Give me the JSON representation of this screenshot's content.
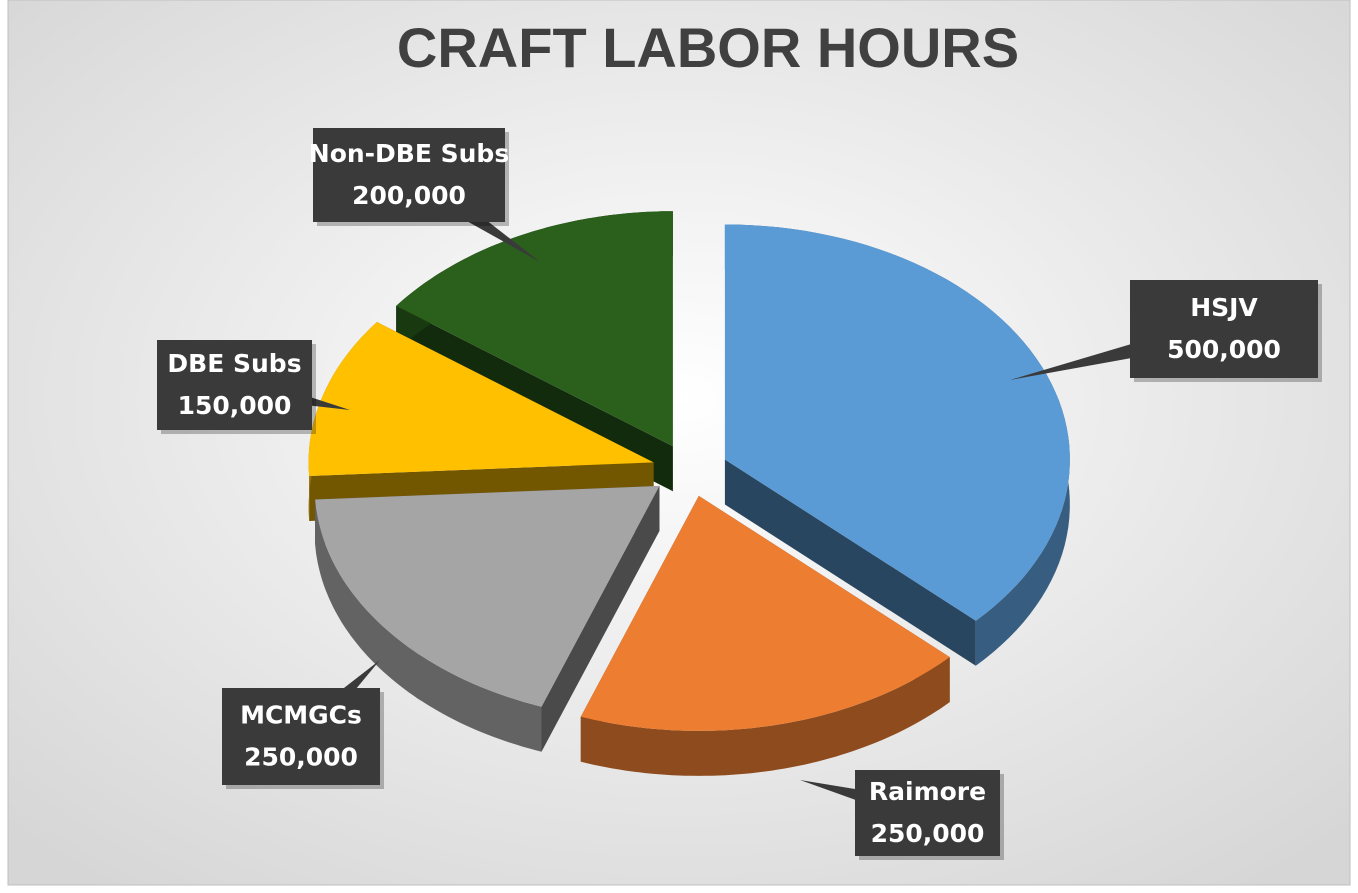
{
  "chart_data": {
    "type": "pie",
    "title": "CRAFT LABOR HOURS",
    "categories": [
      "HSJV",
      "Raimore",
      "MCMGCs",
      "DBE Subs",
      "Non-DBE Subs"
    ],
    "values": [
      500000,
      250000,
      250000,
      150000,
      200000
    ],
    "value_labels": [
      "500,000",
      "250,000",
      "250,000",
      "150,000",
      "200,000"
    ],
    "colors": [
      "#5b9bd5",
      "#ed7d31",
      "#a5a5a5",
      "#ffc000",
      "#2a5f1c"
    ]
  }
}
